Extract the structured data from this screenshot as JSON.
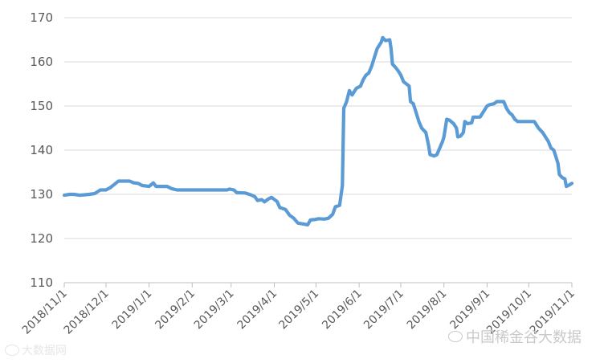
{
  "chart_data": {
    "type": "line",
    "title": "",
    "xlabel": "",
    "ylabel": "",
    "ylim": [
      110,
      170
    ],
    "yticks": [
      110,
      120,
      130,
      140,
      150,
      160,
      170
    ],
    "xlim": [
      "2018-11-01",
      "2019-11-01"
    ],
    "xticks": [
      "2018/11/1",
      "2018/12/1",
      "2019/1/1",
      "2019/2/1",
      "2019/3/1",
      "2019/4/1",
      "2019/5/1",
      "2019/6/1",
      "2019/7/1",
      "2019/8/1",
      "2019/9/1",
      "2019/10/1",
      "2019/11/1"
    ],
    "grid": true,
    "legend": "none",
    "series": [
      {
        "color": "#5B9BD5",
        "points": [
          [
            "2018-11-01",
            129.8
          ],
          [
            "2018-11-05",
            130.0
          ],
          [
            "2018-11-08",
            130.0
          ],
          [
            "2018-11-12",
            129.8
          ],
          [
            "2018-11-16",
            129.9
          ],
          [
            "2018-11-19",
            130.0
          ],
          [
            "2018-11-23",
            130.2
          ],
          [
            "2018-11-27",
            131.0
          ],
          [
            "2018-12-01",
            131.0
          ],
          [
            "2018-12-04",
            131.5
          ],
          [
            "2018-12-06",
            132.0
          ],
          [
            "2018-12-10",
            133.0
          ],
          [
            "2018-12-14",
            133.0
          ],
          [
            "2018-12-18",
            133.0
          ],
          [
            "2018-12-21",
            132.6
          ],
          [
            "2018-12-24",
            132.5
          ],
          [
            "2018-12-27",
            132.0
          ],
          [
            "2019-01-01",
            131.8
          ],
          [
            "2019-01-03",
            132.3
          ],
          [
            "2019-01-04",
            132.6
          ],
          [
            "2019-01-06",
            131.8
          ],
          [
            "2019-01-10",
            131.8
          ],
          [
            "2019-01-14",
            131.8
          ],
          [
            "2019-01-17",
            131.3
          ],
          [
            "2019-01-21",
            131.0
          ],
          [
            "2019-01-25",
            131.0
          ],
          [
            "2019-02-01",
            131.0
          ],
          [
            "2019-02-10",
            131.0
          ],
          [
            "2019-02-20",
            131.0
          ],
          [
            "2019-02-26",
            131.0
          ],
          [
            "2019-02-28",
            131.2
          ],
          [
            "2019-03-03",
            131.0
          ],
          [
            "2019-03-05",
            130.4
          ],
          [
            "2019-03-11",
            130.3
          ],
          [
            "2019-03-15",
            129.9
          ],
          [
            "2019-03-18",
            129.5
          ],
          [
            "2019-03-20",
            128.6
          ],
          [
            "2019-03-23",
            128.8
          ],
          [
            "2019-03-25",
            128.3
          ],
          [
            "2019-03-28",
            129.0
          ],
          [
            "2019-03-30",
            129.3
          ],
          [
            "2019-04-03",
            128.4
          ],
          [
            "2019-04-05",
            127.0
          ],
          [
            "2019-04-09",
            126.6
          ],
          [
            "2019-04-12",
            125.3
          ],
          [
            "2019-04-15",
            124.6
          ],
          [
            "2019-04-18",
            123.5
          ],
          [
            "2019-04-22",
            123.3
          ],
          [
            "2019-04-25",
            123.1
          ],
          [
            "2019-04-27",
            124.2
          ],
          [
            "2019-04-30",
            124.3
          ],
          [
            "2019-05-03",
            124.5
          ],
          [
            "2019-05-07",
            124.4
          ],
          [
            "2019-05-10",
            124.6
          ],
          [
            "2019-05-13",
            125.5
          ],
          [
            "2019-05-15",
            127.2
          ],
          [
            "2019-05-18",
            127.5
          ],
          [
            "2019-05-20",
            132.0
          ],
          [
            "2019-05-21",
            149.5
          ],
          [
            "2019-05-23",
            151.0
          ],
          [
            "2019-05-25",
            153.5
          ],
          [
            "2019-05-27",
            152.5
          ],
          [
            "2019-05-30",
            154.0
          ],
          [
            "2019-06-02",
            154.5
          ],
          [
            "2019-06-04",
            156.0
          ],
          [
            "2019-06-06",
            157.0
          ],
          [
            "2019-06-08",
            157.5
          ],
          [
            "2019-06-10",
            159.0
          ],
          [
            "2019-06-12",
            161.0
          ],
          [
            "2019-06-14",
            163.0
          ],
          [
            "2019-06-17",
            164.5
          ],
          [
            "2019-06-18",
            165.5
          ],
          [
            "2019-06-20",
            164.8
          ],
          [
            "2019-06-23",
            165.0
          ],
          [
            "2019-06-24",
            163.0
          ],
          [
            "2019-06-25",
            159.5
          ],
          [
            "2019-06-27",
            158.8
          ],
          [
            "2019-06-29",
            158.0
          ],
          [
            "2019-07-01",
            157.0
          ],
          [
            "2019-07-03",
            155.5
          ],
          [
            "2019-07-05",
            155.0
          ],
          [
            "2019-07-07",
            154.5
          ],
          [
            "2019-07-08",
            151.0
          ],
          [
            "2019-07-10",
            150.5
          ],
          [
            "2019-07-12",
            148.5
          ],
          [
            "2019-07-14",
            146.5
          ],
          [
            "2019-07-16",
            145.0
          ],
          [
            "2019-07-19",
            144.0
          ],
          [
            "2019-07-21",
            141.0
          ],
          [
            "2019-07-22",
            139.0
          ],
          [
            "2019-07-25",
            138.7
          ],
          [
            "2019-07-27",
            139.0
          ],
          [
            "2019-07-29",
            140.5
          ],
          [
            "2019-07-31",
            142.0
          ],
          [
            "2019-08-01",
            143.0
          ],
          [
            "2019-08-03",
            147.0
          ],
          [
            "2019-08-05",
            146.8
          ],
          [
            "2019-08-08",
            146.0
          ],
          [
            "2019-08-10",
            145.0
          ],
          [
            "2019-08-11",
            143.0
          ],
          [
            "2019-08-13",
            143.2
          ],
          [
            "2019-08-15",
            144.0
          ],
          [
            "2019-08-16",
            146.5
          ],
          [
            "2019-08-18",
            146.0
          ],
          [
            "2019-08-21",
            146.2
          ],
          [
            "2019-08-22",
            147.5
          ],
          [
            "2019-08-25",
            147.5
          ],
          [
            "2019-08-27",
            147.5
          ],
          [
            "2019-08-29",
            148.5
          ],
          [
            "2019-09-01",
            150.0
          ],
          [
            "2019-09-03",
            150.3
          ],
          [
            "2019-09-06",
            150.5
          ],
          [
            "2019-09-08",
            151.0
          ],
          [
            "2019-09-11",
            151.0
          ],
          [
            "2019-09-13",
            151.0
          ],
          [
            "2019-09-15",
            149.5
          ],
          [
            "2019-09-17",
            148.5
          ],
          [
            "2019-09-19",
            148.0
          ],
          [
            "2019-09-21",
            147.0
          ],
          [
            "2019-09-23",
            146.5
          ],
          [
            "2019-09-28",
            146.5
          ],
          [
            "2019-10-01",
            146.5
          ],
          [
            "2019-10-05",
            146.5
          ],
          [
            "2019-10-08",
            145.0
          ],
          [
            "2019-10-11",
            144.0
          ],
          [
            "2019-10-13",
            143.0
          ],
          [
            "2019-10-15",
            142.0
          ],
          [
            "2019-10-17",
            140.5
          ],
          [
            "2019-10-19",
            140.0
          ],
          [
            "2019-10-21",
            138.0
          ],
          [
            "2019-10-22",
            137.0
          ],
          [
            "2019-10-23",
            134.5
          ],
          [
            "2019-10-25",
            133.8
          ],
          [
            "2019-10-27",
            133.5
          ],
          [
            "2019-10-28",
            131.8
          ],
          [
            "2019-10-30",
            132.1
          ],
          [
            "2019-11-01",
            132.5
          ]
        ]
      }
    ]
  },
  "watermark_left": {
    "icon": "watermark-logo-icon",
    "text": "大数据网"
  },
  "watermark_right": {
    "icon": "wechat-channel-icon",
    "text": "中国稀金谷大数据"
  }
}
